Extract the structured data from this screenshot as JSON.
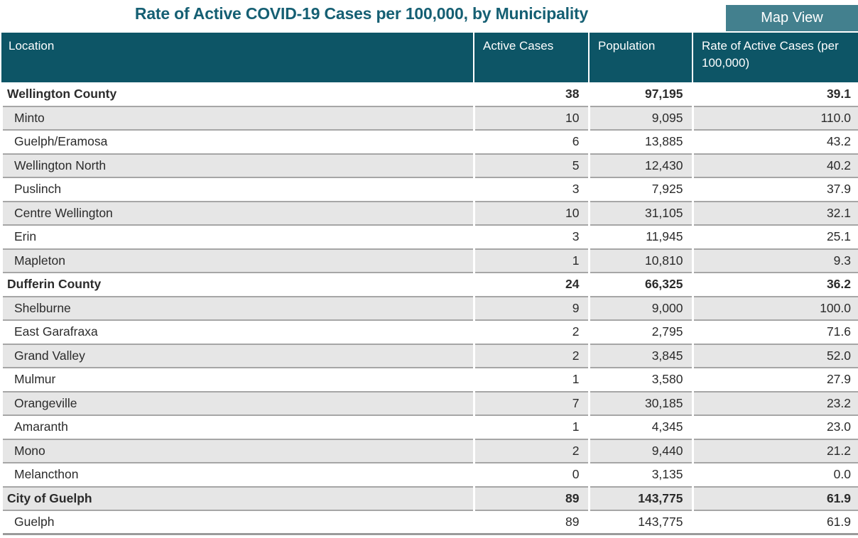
{
  "title": "Rate of Active COVID-19 Cases per 100,000, by Municipality",
  "map_view_button": {
    "label": "Map View"
  },
  "colors": {
    "header_bg": "#0d5566",
    "title_text": "#155f73",
    "button_bg": "#43808e",
    "stripe_row": "#e6e6e6",
    "row_border": "#a6a6a6"
  },
  "table": {
    "columns": [
      "Location",
      "Active Cases",
      "Population",
      "Rate of Active Cases (per 100,000)"
    ],
    "rows": [
      {
        "location": "Wellington County",
        "active_cases": "38",
        "population": "97,195",
        "rate": "39.1",
        "group": true
      },
      {
        "location": "Minto",
        "active_cases": "10",
        "population": "9,095",
        "rate": "110.0",
        "group": false
      },
      {
        "location": "Guelph/Eramosa",
        "active_cases": "6",
        "population": "13,885",
        "rate": "43.2",
        "group": false
      },
      {
        "location": "Wellington North",
        "active_cases": "5",
        "population": "12,430",
        "rate": "40.2",
        "group": false
      },
      {
        "location": "Puslinch",
        "active_cases": "3",
        "population": "7,925",
        "rate": "37.9",
        "group": false
      },
      {
        "location": "Centre Wellington",
        "active_cases": "10",
        "population": "31,105",
        "rate": "32.1",
        "group": false
      },
      {
        "location": "Erin",
        "active_cases": "3",
        "population": "11,945",
        "rate": "25.1",
        "group": false
      },
      {
        "location": "Mapleton",
        "active_cases": "1",
        "population": "10,810",
        "rate": "9.3",
        "group": false
      },
      {
        "location": "Dufferin County",
        "active_cases": "24",
        "population": "66,325",
        "rate": "36.2",
        "group": true
      },
      {
        "location": "Shelburne",
        "active_cases": "9",
        "population": "9,000",
        "rate": "100.0",
        "group": false
      },
      {
        "location": "East Garafraxa",
        "active_cases": "2",
        "population": "2,795",
        "rate": "71.6",
        "group": false
      },
      {
        "location": "Grand Valley",
        "active_cases": "2",
        "population": "3,845",
        "rate": "52.0",
        "group": false
      },
      {
        "location": "Mulmur",
        "active_cases": "1",
        "population": "3,580",
        "rate": "27.9",
        "group": false
      },
      {
        "location": "Orangeville",
        "active_cases": "7",
        "population": "30,185",
        "rate": "23.2",
        "group": false
      },
      {
        "location": "Amaranth",
        "active_cases": "1",
        "population": "4,345",
        "rate": "23.0",
        "group": false
      },
      {
        "location": "Mono",
        "active_cases": "2",
        "population": "9,440",
        "rate": "21.2",
        "group": false
      },
      {
        "location": "Melancthon",
        "active_cases": "0",
        "population": "3,135",
        "rate": "0.0",
        "group": false
      },
      {
        "location": "City of Guelph",
        "active_cases": "89",
        "population": "143,775",
        "rate": "61.9",
        "group": true
      },
      {
        "location": "Guelph",
        "active_cases": "89",
        "population": "143,775",
        "rate": "61.9",
        "group": false
      }
    ]
  }
}
